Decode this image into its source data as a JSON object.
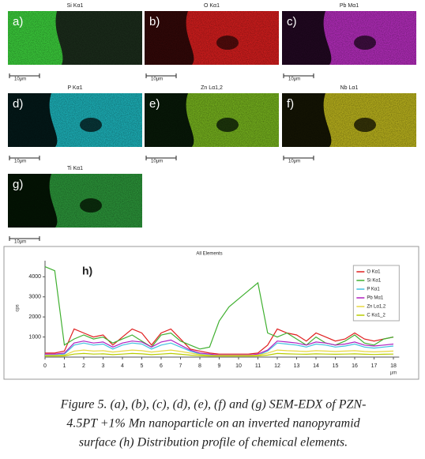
{
  "panels": [
    {
      "letter": "a)",
      "element": "Si Kα1",
      "scale": "10μm"
    },
    {
      "letter": "b)",
      "element": "O Kα1",
      "scale": "10μm"
    },
    {
      "letter": "c)",
      "element": "Pb Mα1",
      "scale": "10μm"
    },
    {
      "letter": "d)",
      "element": "P Kα1",
      "scale": "10μm"
    },
    {
      "letter": "e)",
      "element": "Zn Lα1,2",
      "scale": "10μm"
    },
    {
      "letter": "f)",
      "element": "Nb Lα1",
      "scale": "10μm"
    },
    {
      "letter": "g)",
      "element": "Ti Kα1",
      "scale": "10μm"
    }
  ],
  "chart_data": {
    "type": "line",
    "title": "All Elements",
    "panel_label": "h)",
    "x_label": "µm",
    "y_label": "cps",
    "x": [
      0,
      0.5,
      1,
      1.5,
      2,
      2.5,
      3,
      3.5,
      4,
      4.5,
      5,
      5.5,
      6,
      6.5,
      7,
      7.5,
      8,
      8.5,
      9,
      9.5,
      10,
      10.5,
      11,
      11.5,
      12,
      12.5,
      13,
      13.5,
      14,
      14.5,
      15,
      15.5,
      16,
      16.5,
      17,
      17.5,
      18
    ],
    "series": [
      {
        "name": "O Kα1",
        "color": "#e02020",
        "values": [
          200,
          200,
          300,
          1400,
          1200,
          1000,
          1100,
          600,
          1000,
          1400,
          1200,
          600,
          1200,
          1400,
          900,
          400,
          300,
          200,
          150,
          150,
          150,
          150,
          200,
          600,
          1400,
          1200,
          1100,
          800,
          1200,
          1000,
          800,
          900,
          1200,
          900,
          800,
          900,
          1000
        ]
      },
      {
        "name": "Si Kα1",
        "color": "#40b030",
        "values": [
          4500,
          4300,
          600,
          900,
          1100,
          900,
          1000,
          700,
          900,
          1100,
          800,
          500,
          1100,
          1200,
          800,
          600,
          400,
          500,
          1800,
          2500,
          2900,
          3300,
          3700,
          1200,
          1000,
          1200,
          900,
          600,
          1000,
          700,
          600,
          800,
          1100,
          700,
          600,
          900,
          1000
        ]
      },
      {
        "name": "P Kα1",
        "color": "#40c0e0",
        "values": [
          100,
          100,
          150,
          600,
          700,
          600,
          650,
          400,
          600,
          700,
          650,
          400,
          600,
          700,
          500,
          300,
          150,
          100,
          100,
          100,
          100,
          100,
          100,
          300,
          700,
          650,
          600,
          500,
          650,
          600,
          500,
          550,
          650,
          500,
          450,
          500,
          550
        ]
      },
      {
        "name": "Pb Mα1",
        "color": "#b020c0",
        "values": [
          150,
          150,
          200,
          700,
          800,
          700,
          750,
          500,
          700,
          800,
          750,
          500,
          750,
          850,
          600,
          350,
          200,
          150,
          100,
          100,
          100,
          100,
          150,
          350,
          800,
          750,
          700,
          600,
          750,
          700,
          600,
          650,
          750,
          600,
          550,
          600,
          650
        ]
      },
      {
        "name": "Zn Lα1,2",
        "color": "#e8d840",
        "values": [
          80,
          80,
          100,
          300,
          350,
          300,
          320,
          250,
          300,
          350,
          320,
          250,
          300,
          350,
          280,
          200,
          120,
          80,
          80,
          80,
          80,
          80,
          100,
          200,
          350,
          320,
          300,
          280,
          320,
          300,
          280,
          300,
          320,
          280,
          260,
          280,
          300
        ]
      },
      {
        "name": "C Kα1_2",
        "color": "#b8cc00",
        "values": [
          50,
          50,
          60,
          150,
          180,
          150,
          160,
          120,
          150,
          180,
          160,
          120,
          150,
          180,
          140,
          100,
          70,
          50,
          50,
          50,
          50,
          50,
          60,
          100,
          180,
          160,
          150,
          140,
          160,
          150,
          140,
          150,
          160,
          140,
          130,
          140,
          150
        ]
      }
    ],
    "xlim": [
      0,
      18.3
    ],
    "ylim": [
      0,
      4800
    ],
    "xticks": [
      0,
      1,
      2,
      3,
      4,
      5,
      6,
      7,
      8,
      9,
      10,
      11,
      12,
      13,
      14,
      15,
      16,
      17,
      18
    ],
    "yticks": [
      1000,
      2000,
      3000,
      4000
    ],
    "legend": "top-right"
  },
  "caption": {
    "lines": [
      "Figure 5. (a), (b), (c), (d), (e), (f) and (g) SEM-EDX of PZN-",
      "4.5PT +1% Mn nanoparticle on an inverted nanopyramid",
      "surface (h) Distribution profile of chemical elements."
    ]
  }
}
